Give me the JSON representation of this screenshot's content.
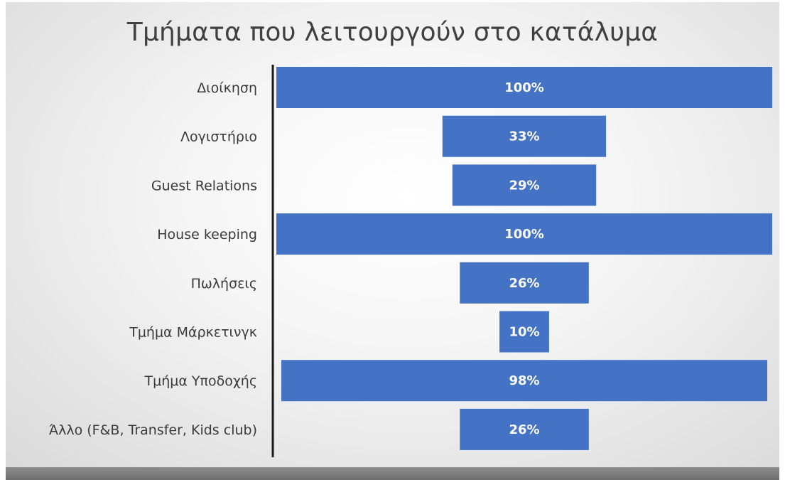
{
  "chart_data": {
    "type": "bar",
    "orientation": "horizontal",
    "style": "funnel",
    "title": "Τμήματα που λειτουργούν στο κατάλυμα",
    "xlabel": "",
    "ylabel": "",
    "xlim": [
      0,
      100
    ],
    "grid": false,
    "legend": "none",
    "bar_color": "#4472c4",
    "categories": [
      "Διοίκηση",
      "Λογιστήριο",
      "Guest Relations",
      "House keeping",
      "Πωλήσεις",
      "Τμήμα Μάρκετινγκ",
      "Τμήμα Υποδοχής",
      "Άλλο (F&B, Transfer, Kids club)"
    ],
    "values": [
      100,
      33,
      29,
      100,
      26,
      10,
      98,
      26
    ],
    "data_labels": [
      "100%",
      "33%",
      "29%",
      "100%",
      "26%",
      "10%",
      "98%",
      "26%"
    ]
  }
}
